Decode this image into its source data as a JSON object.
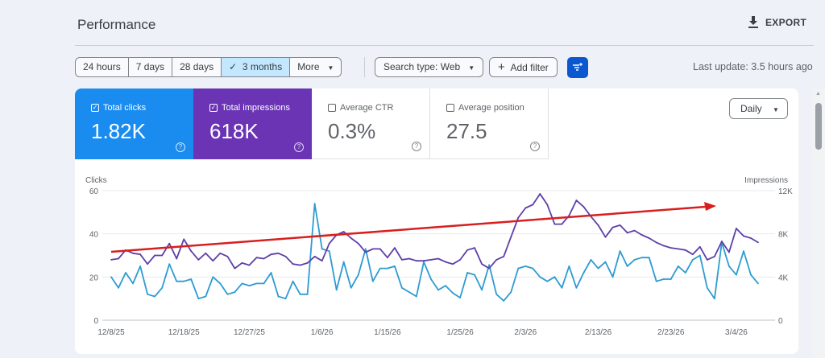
{
  "header": {
    "title": "Performance",
    "export_label": "EXPORT"
  },
  "toolbar": {
    "ranges": [
      {
        "label": "24 hours"
      },
      {
        "label": "7 days"
      },
      {
        "label": "28 days"
      },
      {
        "label": "3 months",
        "selected": true
      },
      {
        "label": "More"
      }
    ],
    "search_type": "Search type: Web",
    "add_filter": "Add filter",
    "last_update": "Last update: 3.5 hours ago"
  },
  "metrics": [
    {
      "label": "Total clicks",
      "value": "1.82K",
      "checked": true,
      "color": "#1a8cf0"
    },
    {
      "label": "Total impressions",
      "value": "618K",
      "checked": true,
      "color": "#6a34b5"
    },
    {
      "label": "Average CTR",
      "value": "0.3%",
      "checked": false
    },
    {
      "label": "Average position",
      "value": "27.5",
      "checked": false
    }
  ],
  "granularity": "Daily",
  "chart_data": {
    "type": "line",
    "left_axis_label": "Clicks",
    "right_axis_label": "Impressions",
    "left_ylim": [
      0,
      60
    ],
    "right_ylim": [
      0,
      12000
    ],
    "left_ticks": [
      "0",
      "20",
      "40",
      "60"
    ],
    "right_ticks": [
      "0",
      "4K",
      "8K",
      "12K"
    ],
    "x_tick_labels": [
      "12/8/25",
      "12/18/25",
      "12/27/25",
      "1/6/26",
      "1/15/26",
      "1/25/26",
      "2/3/26",
      "2/13/26",
      "2/23/26",
      "3/4/26"
    ],
    "grid": true,
    "x": [
      "12/8/25",
      "12/9/25",
      "12/10/25",
      "12/11/25",
      "12/12/25",
      "12/13/25",
      "12/14/25",
      "12/15/25",
      "12/16/25",
      "12/17/25",
      "12/18/25",
      "12/19/25",
      "12/20/25",
      "12/21/25",
      "12/22/25",
      "12/23/25",
      "12/24/25",
      "12/25/25",
      "12/26/25",
      "12/27/25",
      "12/28/25",
      "12/29/25",
      "12/30/25",
      "12/31/25",
      "1/1/26",
      "1/2/26",
      "1/3/26",
      "1/4/26",
      "1/5/26",
      "1/6/26",
      "1/7/26",
      "1/8/26",
      "1/9/26",
      "1/10/26",
      "1/11/26",
      "1/12/26",
      "1/13/26",
      "1/14/26",
      "1/15/26",
      "1/16/26",
      "1/17/26",
      "1/18/26",
      "1/19/26",
      "1/20/26",
      "1/21/26",
      "1/22/26",
      "1/23/26",
      "1/24/26",
      "1/25/26",
      "1/26/26",
      "1/27/26",
      "1/28/26",
      "1/29/26",
      "1/30/26",
      "1/31/26",
      "2/1/26",
      "2/2/26",
      "2/3/26",
      "2/4/26",
      "2/5/26",
      "2/6/26",
      "2/7/26",
      "2/8/26",
      "2/9/26",
      "2/10/26",
      "2/11/26",
      "2/12/26",
      "2/13/26",
      "2/14/26",
      "2/15/26",
      "2/16/26",
      "2/17/26",
      "2/18/26",
      "2/19/26",
      "2/20/26",
      "2/21/26",
      "2/22/26",
      "2/23/26",
      "2/24/26",
      "2/25/26",
      "2/26/26",
      "2/27/26",
      "2/28/26",
      "3/1/26",
      "3/2/26",
      "3/3/26",
      "3/4/26",
      "3/5/26",
      "3/6/26",
      "3/7/26"
    ],
    "series": [
      {
        "name": "Clicks",
        "axis": "left",
        "color": "#2d9bd2",
        "values": [
          20,
          15,
          22,
          17,
          25,
          12,
          11,
          15,
          26,
          18,
          18,
          19,
          10,
          11,
          20,
          17,
          12,
          13,
          17,
          16,
          17,
          17,
          22,
          11,
          10,
          18,
          12,
          12,
          54,
          33,
          32,
          14,
          27,
          15,
          21,
          33,
          18,
          24,
          24,
          25,
          15,
          13,
          11,
          27,
          19,
          14,
          16,
          12.6,
          10.4,
          22,
          21,
          14,
          25.6,
          12,
          9,
          13,
          24,
          25,
          24,
          20,
          18,
          20,
          15,
          25,
          15,
          22,
          28,
          24,
          27,
          20,
          32,
          25,
          28,
          29,
          29,
          18,
          19,
          19,
          25,
          22,
          28,
          30,
          15,
          10,
          36,
          25,
          21,
          32,
          21,
          17
        ]
      },
      {
        "name": "Impressions",
        "axis": "right",
        "color": "#5e3fa8",
        "values": [
          5600,
          5700,
          6500,
          6200,
          6100,
          5200,
          6000,
          6000,
          7100,
          5700,
          7500,
          6400,
          5600,
          6200,
          5500,
          6200,
          5900,
          4800,
          5300,
          5100,
          5800,
          5700,
          6100,
          6200,
          5900,
          5200,
          5100,
          5300,
          5900,
          5500,
          7100,
          7900,
          8200,
          7600,
          7100,
          6300,
          6600,
          6600,
          5800,
          6700,
          5600,
          5700,
          5500,
          5500,
          5600,
          5700,
          5400,
          5200,
          5600,
          6500,
          6700,
          5200,
          4800,
          5600,
          5900,
          7700,
          9500,
          10400,
          10700,
          11700,
          10700,
          8900,
          8900,
          9700,
          11100,
          10500,
          9600,
          8800,
          7700,
          8600,
          8800,
          8100,
          8300,
          7900,
          7600,
          7200,
          6900,
          6700,
          6600,
          6500,
          6100,
          6800,
          5600,
          5900,
          7300,
          6300,
          8500,
          7800,
          7600,
          7200
        ]
      }
    ],
    "annotation": {
      "type": "trend-arrow",
      "color": "#d91e1e"
    }
  }
}
